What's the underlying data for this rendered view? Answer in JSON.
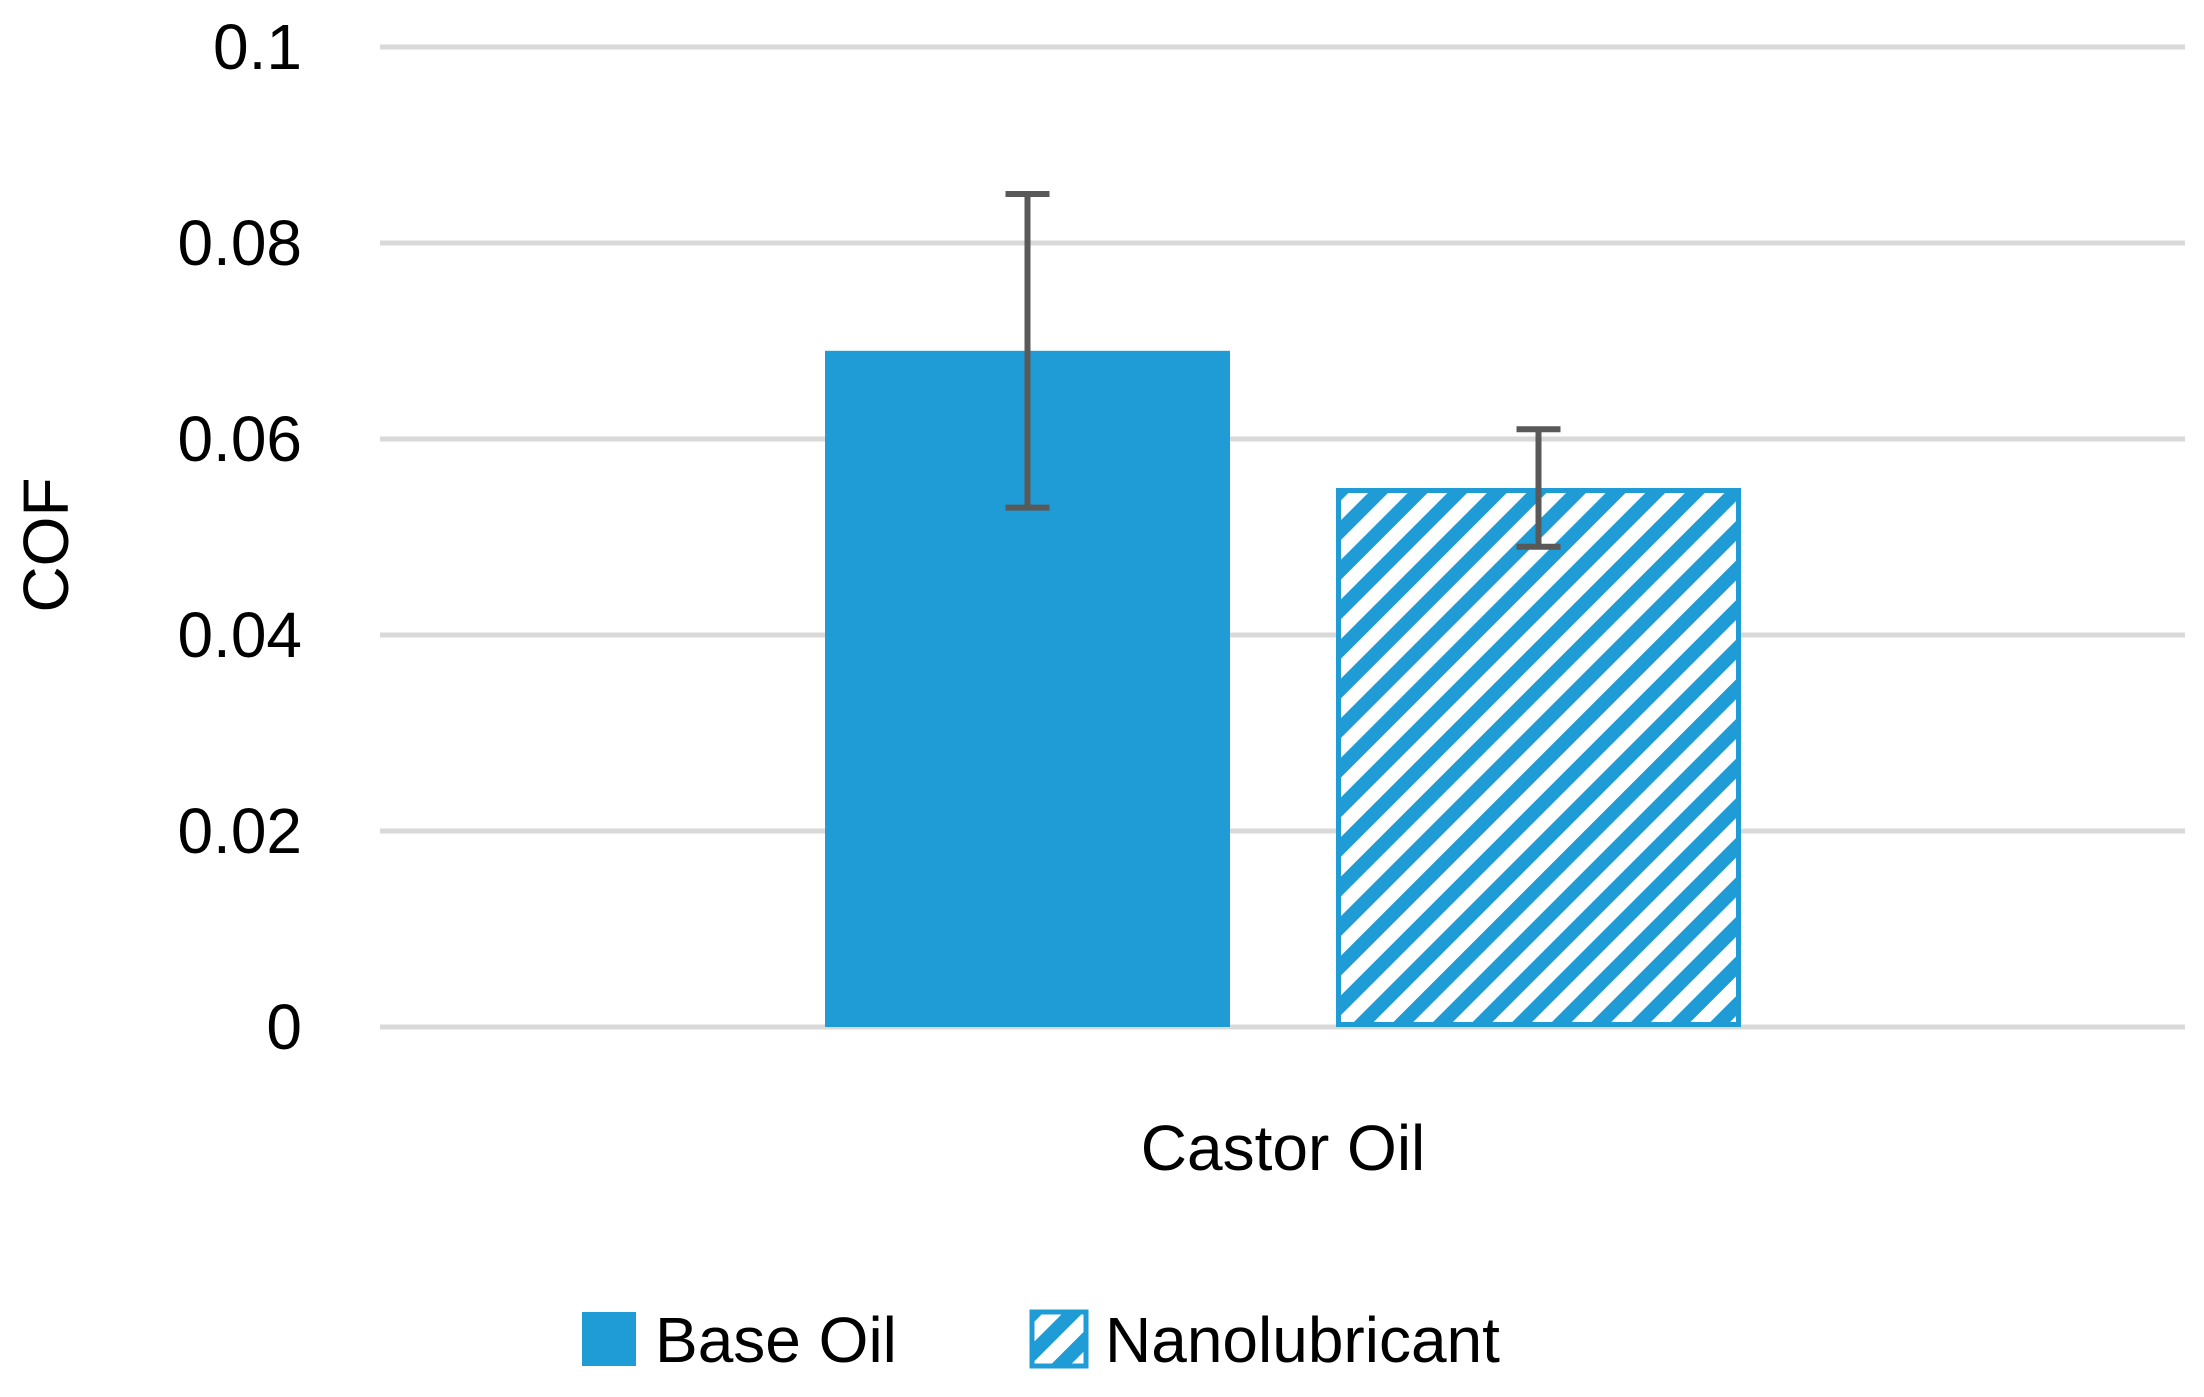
{
  "chart_data": {
    "type": "bar",
    "title": "",
    "xlabel": "",
    "ylabel": "COF",
    "ylim": [
      0,
      0.1
    ],
    "yticks": [
      0,
      0.02,
      0.04,
      0.06,
      0.08,
      0.1
    ],
    "ytick_labels": [
      "0",
      "0.02",
      "0.04",
      "0.06",
      "0.08",
      "0.1"
    ],
    "grid": true,
    "legend_position": "bottom",
    "categories": [
      "Castor Oil"
    ],
    "series": [
      {
        "name": "Base Oil",
        "values": [
          0.069
        ],
        "error_low": [
          0.053
        ],
        "error_high": [
          0.085
        ],
        "color": "#1f9bd6",
        "pattern": "solid"
      },
      {
        "name": "Nanolubricant",
        "values": [
          0.055
        ],
        "error_low": [
          0.049
        ],
        "error_high": [
          0.061
        ],
        "color": "#1f9bd6",
        "pattern": "diagonal-stripes"
      }
    ],
    "colors": {
      "grid": "#d9d9d9",
      "error_bar": "#595959"
    }
  }
}
